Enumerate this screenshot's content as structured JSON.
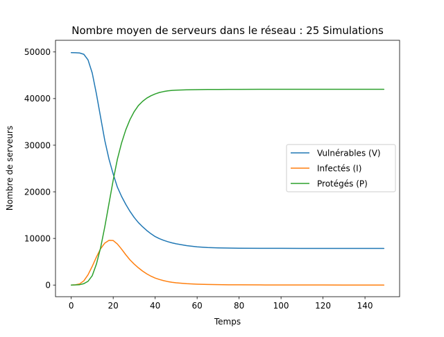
{
  "chart_data": {
    "type": "line",
    "title": "Nombre moyen de serveurs dans le réseau : 25 Simulations",
    "xlabel": "Temps",
    "ylabel": "Nombre de serveurs",
    "xlim": [
      -7.5,
      156.5
    ],
    "ylim": [
      -2500,
      52500
    ],
    "xticks": [
      0,
      20,
      40,
      60,
      80,
      100,
      120,
      140
    ],
    "yticks": [
      0,
      10000,
      20000,
      30000,
      40000,
      50000
    ],
    "grid": false,
    "legend_position": "center-right",
    "x": [
      0,
      2,
      4,
      6,
      8,
      10,
      12,
      14,
      16,
      18,
      20,
      22,
      24,
      26,
      28,
      30,
      32,
      34,
      36,
      38,
      40,
      42,
      44,
      46,
      48,
      50,
      55,
      60,
      65,
      70,
      75,
      80,
      90,
      100,
      110,
      120,
      130,
      140,
      149
    ],
    "series": [
      {
        "name": "Vulnérables (V)",
        "color": "#1f77b4",
        "values": [
          49850,
          49830,
          49780,
          49500,
          48300,
          45500,
          41000,
          36000,
          31000,
          27000,
          23800,
          21000,
          19000,
          17300,
          15800,
          14500,
          13400,
          12500,
          11700,
          11000,
          10400,
          9950,
          9600,
          9300,
          9050,
          8850,
          8450,
          8200,
          8050,
          7980,
          7930,
          7900,
          7880,
          7870,
          7860,
          7860,
          7860,
          7860,
          7860
        ]
      },
      {
        "name": "Infectés (I)",
        "color": "#ff7f0e",
        "values": [
          0,
          50,
          250,
          900,
          2200,
          4000,
          6000,
          7800,
          9000,
          9600,
          9550,
          8800,
          7700,
          6500,
          5400,
          4500,
          3700,
          3000,
          2400,
          1900,
          1500,
          1200,
          950,
          750,
          600,
          480,
          300,
          190,
          130,
          90,
          60,
          45,
          25,
          15,
          10,
          8,
          5,
          5,
          5
        ]
      },
      {
        "name": "Protégés (P)",
        "color": "#2ca02c",
        "values": [
          0,
          30,
          80,
          300,
          800,
          2000,
          4500,
          8000,
          12500,
          17500,
          22500,
          27000,
          30500,
          33300,
          35500,
          37200,
          38500,
          39400,
          40100,
          40600,
          41000,
          41300,
          41500,
          41650,
          41750,
          41800,
          41880,
          41920,
          41950,
          41960,
          41970,
          41980,
          41985,
          41990,
          41990,
          41990,
          41990,
          41990,
          41990
        ]
      }
    ]
  }
}
